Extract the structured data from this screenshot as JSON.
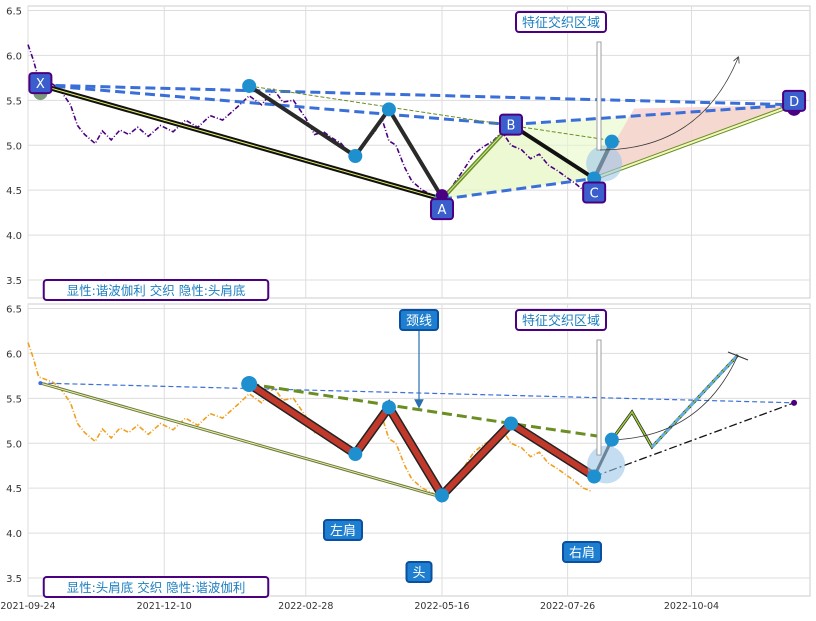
{
  "chart_data": [
    {
      "type": "line",
      "panel": "top",
      "xlim": [
        "2021-09-24",
        "2022-12-10"
      ],
      "ylim": [
        3.3,
        6.55
      ],
      "y_ticks": [
        "3.5",
        "4.0",
        "4.5",
        "5.0",
        "5.5",
        "6.0",
        "6.5"
      ],
      "grid": true,
      "corner_label": "显性:谐波伽利 交织 隐性:头肩底",
      "zone_label": "特征交织区域",
      "price_series": {
        "color": "#4b0082",
        "points": [
          [
            "2021-09-24",
            6.12
          ],
          [
            "2021-09-27",
            5.95
          ],
          [
            "2021-09-30",
            5.74
          ],
          [
            "2021-10-08",
            5.68
          ],
          [
            "2021-10-12",
            5.62
          ],
          [
            "2021-10-18",
            5.45
          ],
          [
            "2021-10-22",
            5.22
          ],
          [
            "2021-10-26",
            5.12
          ],
          [
            "2021-11-01",
            5.02
          ],
          [
            "2021-11-05",
            5.16
          ],
          [
            "2021-11-10",
            5.06
          ],
          [
            "2021-11-15",
            5.17
          ],
          [
            "2021-11-20",
            5.12
          ],
          [
            "2021-11-25",
            5.2
          ],
          [
            "2021-12-01",
            5.1
          ],
          [
            "2021-12-08",
            5.22
          ],
          [
            "2021-12-15",
            5.15
          ],
          [
            "2021-12-22",
            5.28
          ],
          [
            "2021-12-29",
            5.2
          ],
          [
            "2022-01-05",
            5.33
          ],
          [
            "2022-01-12",
            5.28
          ],
          [
            "2022-01-20",
            5.42
          ],
          [
            "2022-01-27",
            5.55
          ],
          [
            "2022-02-03",
            5.45
          ],
          [
            "2022-02-10",
            5.62
          ],
          [
            "2022-02-15",
            5.48
          ],
          [
            "2022-02-21",
            5.5
          ],
          [
            "2022-02-28",
            5.3
          ],
          [
            "2022-03-05",
            5.12
          ],
          [
            "2022-03-10",
            5.15
          ],
          [
            "2022-03-15",
            5.08
          ],
          [
            "2022-03-20",
            5.02
          ],
          [
            "2022-03-25",
            4.9
          ],
          [
            "2022-03-28",
            4.82
          ],
          [
            "2022-04-02",
            5.02
          ],
          [
            "2022-04-08",
            5.15
          ],
          [
            "2022-04-12",
            5.3
          ],
          [
            "2022-04-16",
            5.05
          ],
          [
            "2022-04-20",
            5.0
          ],
          [
            "2022-04-25",
            4.75
          ],
          [
            "2022-04-29",
            4.6
          ],
          [
            "2022-05-05",
            4.5
          ],
          [
            "2022-05-10",
            4.45
          ],
          [
            "2022-05-16",
            4.4
          ],
          [
            "2022-05-22",
            4.55
          ],
          [
            "2022-05-28",
            4.72
          ],
          [
            "2022-06-03",
            4.9
          ],
          [
            "2022-06-08",
            4.98
          ],
          [
            "2022-06-14",
            5.05
          ],
          [
            "2022-06-19",
            5.15
          ],
          [
            "2022-06-24",
            5.0
          ],
          [
            "2022-06-30",
            4.95
          ],
          [
            "2022-07-05",
            4.85
          ],
          [
            "2022-07-10",
            4.9
          ],
          [
            "2022-07-15",
            4.78
          ],
          [
            "2022-07-20",
            4.72
          ],
          [
            "2022-07-25",
            4.65
          ],
          [
            "2022-07-30",
            4.58
          ],
          [
            "2022-08-04",
            4.5
          ],
          [
            "2022-08-08",
            4.47
          ]
        ]
      },
      "pivots": [
        {
          "label": "X",
          "date": "2021-10-01",
          "value": 5.67
        },
        {
          "label": "A",
          "date": "2022-05-16",
          "value": 4.4
        },
        {
          "label": "B",
          "date": "2022-06-24",
          "value": 5.23
        },
        {
          "label": "C",
          "date": "2022-08-10",
          "value": 4.63
        },
        {
          "label": "D",
          "date": "2022-12-01",
          "value": 5.45
        }
      ],
      "hs_points": [
        {
          "date": "2022-01-27",
          "value": 5.66
        },
        {
          "date": "2022-03-28",
          "value": 4.88
        },
        {
          "date": "2022-04-16",
          "value": 5.4
        },
        {
          "date": "2022-05-16",
          "value": 4.42
        },
        {
          "date": "2022-06-24",
          "value": 5.22
        },
        {
          "date": "2022-08-10",
          "value": 4.63
        },
        {
          "date": "2022-08-20",
          "value": 5.04
        }
      ],
      "colors": {
        "label_box": "#3a5fcd",
        "label_border": "#4b0082",
        "dash": "#3a6fd8",
        "marker": "#1e90d0",
        "fill_green": "#e8f8c8",
        "fill_red": "#f7c9c9"
      }
    },
    {
      "type": "line",
      "panel": "bottom",
      "xlim": [
        "2021-09-24",
        "2022-12-10"
      ],
      "ylim": [
        3.3,
        6.55
      ],
      "y_ticks": [
        "3.5",
        "4.0",
        "4.5",
        "5.0",
        "5.5",
        "6.0",
        "6.5"
      ],
      "x_ticks": [
        "2021-09-24",
        "2021-12-10",
        "2022-02-28",
        "2022-05-16",
        "2022-07-26",
        "2022-10-04"
      ],
      "grid": true,
      "corner_label": "显性:头肩底 交织 隐性:谐波伽利",
      "zone_label": "特征交织区域",
      "neckline_label": "颈线",
      "labels": {
        "left_shoulder": "左肩",
        "head": "头",
        "right_shoulder": "右肩"
      },
      "price_series": {
        "color": "#f0a020"
      },
      "colors": {
        "hs_line": "#c0392b",
        "neckline": "#6b8e23",
        "marker": "#1e90d0",
        "label_box": "#1e7fd0",
        "projection": "#5fb0e0"
      }
    }
  ]
}
